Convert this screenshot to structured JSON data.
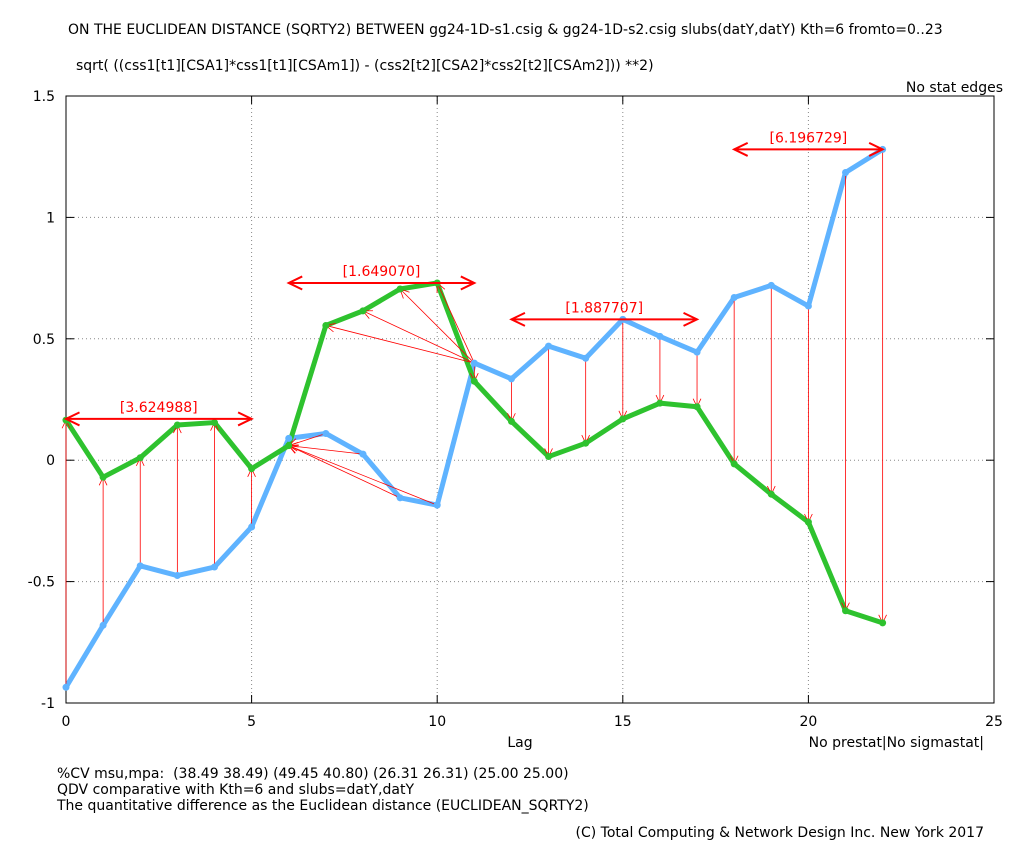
{
  "chart_data": {
    "type": "line",
    "title": "ON THE EUCLIDEAN DISTANCE (SQRTY2) BETWEEN gg24-1D-s1.csig & gg24-1D-s2.csig slubs(datY,datY) Kth=6 fromto=0..23",
    "subtitle": "sqrt( ((css1[t1][CSA1]*css1[t1][CSAm1]) - (css2[t2][CSA2]*css2[t2][CSAm2])) **2)",
    "corner_note": "No stat edges",
    "xlabel": "Lag",
    "xlabel_right": "No prestat|No sigmastat|",
    "ylabel": "",
    "xlim": [
      0,
      25
    ],
    "ylim": [
      -1,
      1.5
    ],
    "xticks": [
      "0",
      "5",
      "10",
      "15",
      "20",
      "25"
    ],
    "yticks": [
      "-1",
      "-0.5",
      "0",
      "0.5",
      "1",
      "1.5"
    ],
    "grid": true,
    "series": [
      {
        "color": "#5fb3ff",
        "x": [
          0,
          1,
          2,
          3,
          4,
          5,
          6,
          7,
          8,
          9,
          10,
          11,
          12,
          13,
          14,
          15,
          16,
          17,
          18,
          19,
          20,
          21,
          22
        ],
        "y": [
          -0.935,
          -0.68,
          -0.435,
          -0.475,
          -0.44,
          -0.275,
          0.09,
          0.11,
          0.025,
          -0.155,
          -0.185,
          0.4,
          0.335,
          0.47,
          0.42,
          0.58,
          0.51,
          0.445,
          0.67,
          0.72,
          0.635,
          1.185,
          1.28
        ]
      },
      {
        "color": "#2ec22e",
        "x": [
          0,
          1,
          2,
          3,
          4,
          5,
          6,
          7,
          8,
          9,
          10,
          11,
          12,
          13,
          14,
          15,
          16,
          17,
          18,
          19,
          20,
          21,
          22
        ],
        "y": [
          0.165,
          -0.07,
          0.01,
          0.145,
          0.155,
          -0.035,
          0.06,
          0.555,
          0.615,
          0.705,
          0.73,
          0.325,
          0.16,
          0.015,
          0.07,
          0.17,
          0.235,
          0.22,
          -0.015,
          -0.14,
          -0.255,
          -0.62,
          -0.67
        ]
      }
    ],
    "segments": [
      {
        "label": "[3.624988]",
        "from": 0,
        "to": 5
      },
      {
        "label": "[1.649070]",
        "from": 6,
        "to": 11
      },
      {
        "label": "[1.887707]",
        "from": 12,
        "to": 17
      },
      {
        "label": "[6.196729]",
        "from": 18,
        "to": 22
      }
    ]
  },
  "footer": {
    "line1": "%CV msu,mpa:  (38.49 38.49) (49.45 40.80) (26.31 26.31) (25.00 25.00)",
    "line2": "QDV comparative with Kth=6 and slubs=datY,datY",
    "line3": "The quantitative difference as the Euclidean distance (EUCLIDEAN_SQRTY2)",
    "copyright": "(C) Total Computing & Network Design Inc. New York 2017"
  },
  "colors": {
    "arrow": "#ff0000",
    "grid": "#888888"
  }
}
